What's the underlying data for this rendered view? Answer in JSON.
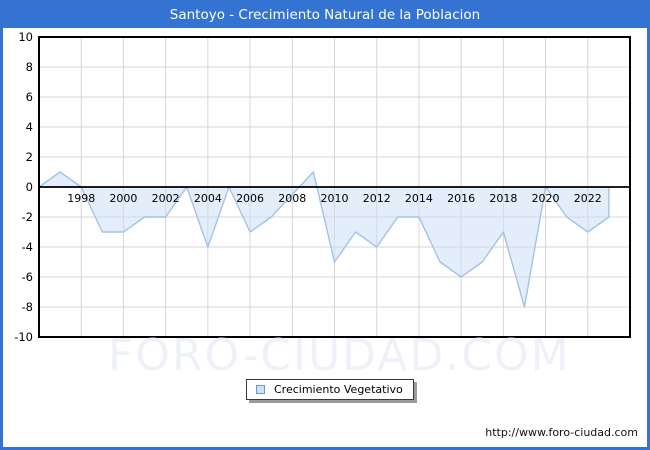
{
  "window": {
    "title": "Santoyo - Crecimiento Natural de la Poblacion"
  },
  "watermark": "FORO-CIUDAD.COM",
  "footer": {
    "url": "http://www.foro-ciudad.com"
  },
  "legend": {
    "label": "Crecimiento Vegetativo"
  },
  "colors": {
    "titlebar_bg": "#3473d1",
    "titlebar_text": "#ffffff",
    "frame_border": "#3473d1",
    "plot_bg": "#ffffff",
    "plot_border": "#000000",
    "grid": "#d6d6d6",
    "zero_line": "#000000",
    "area_fill": "#cce0f5",
    "area_fill_opacity": 0.55,
    "area_line": "#a4c2e5",
    "tick_text": "#000000",
    "watermark": "#eff1f8",
    "legend_marker_fill": "#cfe2f4",
    "legend_marker_border": "#6f95c9"
  },
  "chart_data": {
    "type": "area",
    "title": "Santoyo - Crecimiento Natural de la Poblacion",
    "legend_entries": [
      "Crecimiento Vegetativo"
    ],
    "legend_position": "bottom-center",
    "xlabel": "",
    "ylabel": "",
    "grid": true,
    "baseline": 0,
    "xlim": [
      1996,
      2024
    ],
    "ylim": [
      -10,
      10
    ],
    "yticks": [
      10,
      8,
      6,
      4,
      2,
      0,
      -2,
      -4,
      -6,
      -8,
      -10
    ],
    "xticks": [
      1998,
      2000,
      2002,
      2004,
      2006,
      2008,
      2010,
      2012,
      2014,
      2016,
      2018,
      2020,
      2022
    ],
    "x": [
      1996,
      1997,
      1998,
      1999,
      2000,
      2001,
      2002,
      2003,
      2004,
      2005,
      2006,
      2007,
      2008,
      2009,
      2010,
      2011,
      2012,
      2013,
      2014,
      2015,
      2016,
      2017,
      2018,
      2019,
      2020,
      2021,
      2022,
      2023
    ],
    "values": [
      0,
      1,
      0,
      -3,
      -3,
      -2,
      -2,
      0,
      -4,
      0,
      -3,
      -2,
      -0.5,
      1,
      -5,
      -3,
      -4,
      -2,
      -2,
      -5,
      -6,
      -5,
      -3,
      -8,
      0,
      -2,
      -3,
      -2
    ]
  }
}
